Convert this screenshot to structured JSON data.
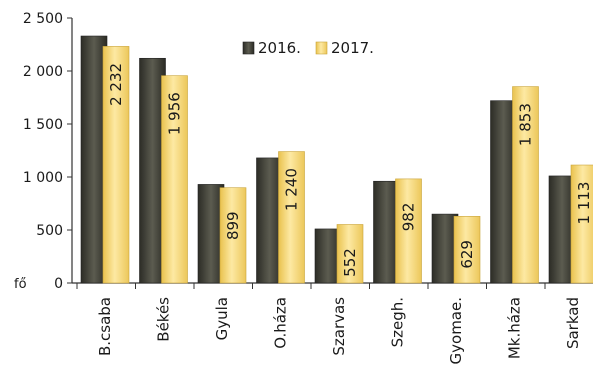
{
  "chart_data": {
    "type": "bar",
    "title": "",
    "xlabel": "",
    "ylabel": "fő",
    "ylim": [
      0,
      2500
    ],
    "yticks": [
      0,
      500,
      1000,
      1500,
      2000,
      2500
    ],
    "ytick_labels": [
      "0",
      "500",
      "1 000",
      "1 500",
      "2 000",
      "2 500"
    ],
    "grid": false,
    "legend_position": "top-right",
    "categories": [
      "B.csaba",
      "Békés",
      "Gyula",
      "O.háza",
      "Szarvas",
      "Szegh.",
      "Gyomae.",
      "Mk.háza",
      "Sarkad"
    ],
    "series": [
      {
        "name": "2016.",
        "color": "#4a4a40",
        "values": [
          2330,
          2120,
          930,
          1180,
          510,
          960,
          650,
          1720,
          1010
        ]
      },
      {
        "name": "2017.",
        "color": "#f5d77a",
        "values": [
          2232,
          1956,
          899,
          1240,
          552,
          982,
          629,
          1853,
          1113
        ],
        "data_labels": [
          "2 232",
          "1 956",
          "899",
          "1 240",
          "552",
          "982",
          "629",
          "1 853",
          "1 113"
        ]
      }
    ]
  }
}
